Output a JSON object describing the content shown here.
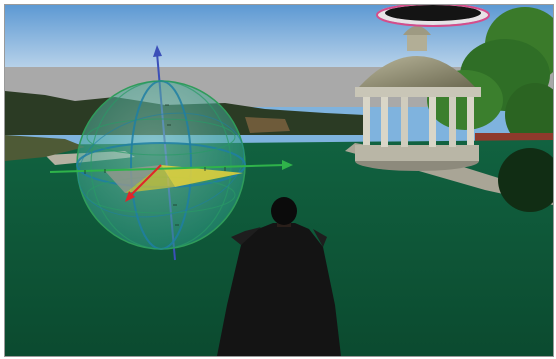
{
  "scene": {
    "colors": {
      "sky_top": "#5d99d3",
      "sky_bottom": "#b9d3ea",
      "grass": "#0f5a38",
      "grass_dark": "#0a4229",
      "gizmo_sphere": "#3fae9a",
      "axis_x": "#2fb34a",
      "axis_y": "#e0252a",
      "axis_z": "#3b4fb8",
      "rotation_plane": "#e7d43a",
      "cloak": "#141414"
    },
    "icons": {
      "gizmo": "rotation-gizmo-icon",
      "avatar": "avatar-figure",
      "gazebo": "gazebo-structure"
    }
  }
}
